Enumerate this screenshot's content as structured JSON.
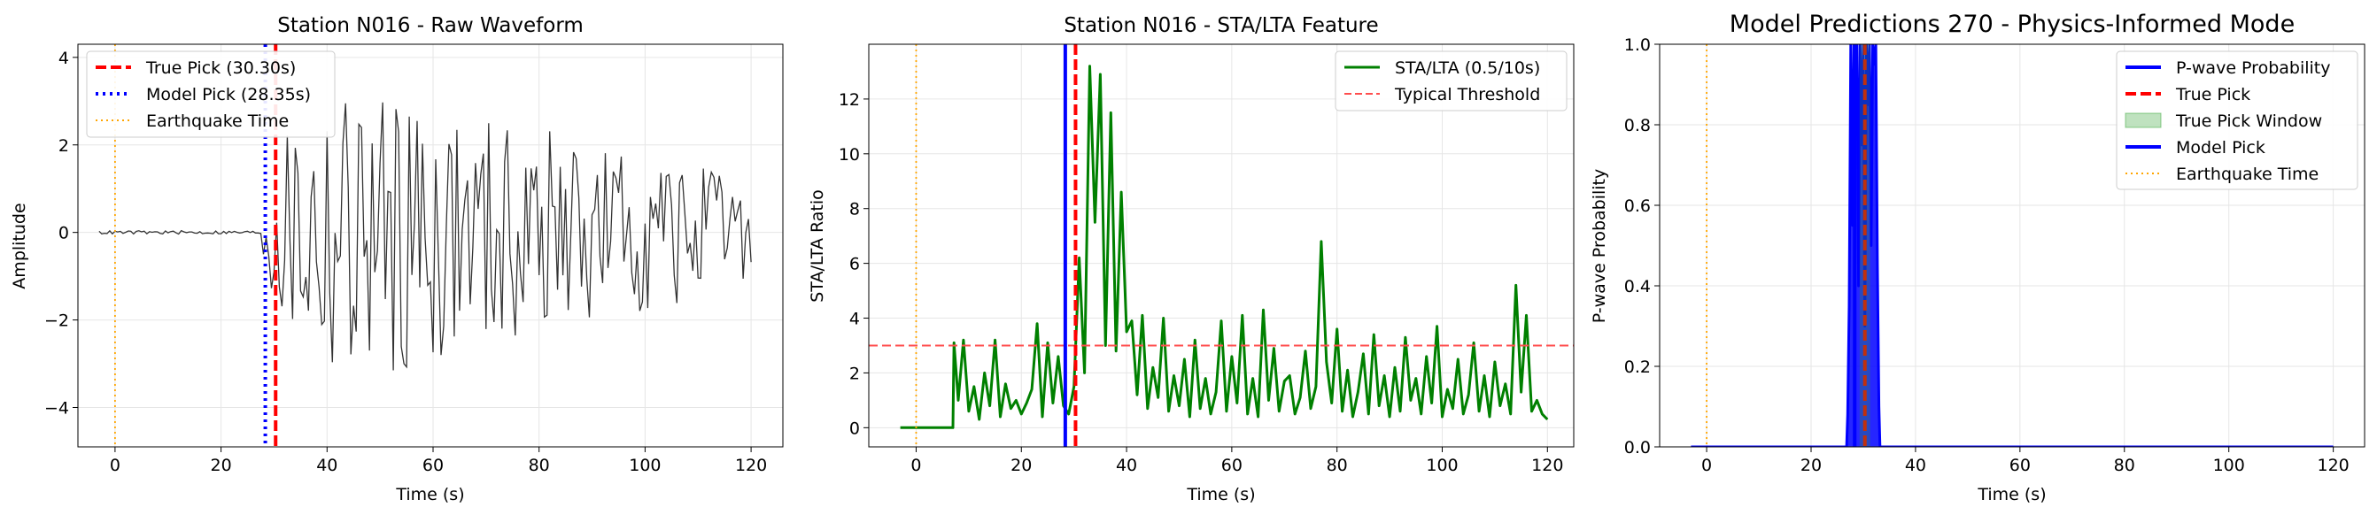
{
  "chart_data": [
    {
      "type": "line",
      "title": "Station N016 - Raw Waveform",
      "xlabel": "Time (s)",
      "ylabel": "Amplitude",
      "xlim": [
        -7,
        126
      ],
      "ylim": [
        -4.9,
        4.3
      ],
      "xticks": [
        0,
        20,
        40,
        60,
        80,
        100,
        120
      ],
      "yticks": [
        -4,
        -2,
        0,
        2,
        4
      ],
      "grid": true,
      "legend_position": "top-left",
      "series": [
        {
          "name": "",
          "color": "#000000",
          "style": "solid",
          "waveform": {
            "t_start": -3,
            "t_end": 120,
            "step": 0.5,
            "quiet_until": 28,
            "quiet_amplitude": 0.04,
            "peak_amplitude": 4.0,
            "decay_to": 1.2,
            "seed": 16
          }
        },
        {
          "name": "True Pick (30.30s)",
          "color": "#ff0000",
          "style": "dashed",
          "vline": 30.3
        },
        {
          "name": "Model Pick (28.35s)",
          "color": "#0000ff",
          "style": "dotted",
          "vline": 28.35
        },
        {
          "name": "Earthquake Time",
          "color": "#ffa500",
          "style": "dotted",
          "vline": 0
        }
      ]
    },
    {
      "type": "line",
      "title": "Station N016 - STA/LTA Feature",
      "xlabel": "Time (s)",
      "ylabel": "STA/LTA Ratio",
      "xlim": [
        -9,
        125
      ],
      "ylim": [
        -0.7,
        14
      ],
      "xticks": [
        0,
        20,
        40,
        60,
        80,
        100,
        120
      ],
      "yticks": [
        0,
        2,
        4,
        6,
        8,
        10,
        12
      ],
      "grid": true,
      "legend_position": "top-right",
      "series": [
        {
          "name": "STA/LTA (0.5/10s)",
          "color": "#008000",
          "style": "solid",
          "x": [
            -3,
            7,
            7.2,
            8,
            9,
            10,
            11,
            12,
            13,
            14,
            15,
            16,
            17,
            18,
            19,
            20,
            21,
            22,
            23,
            24,
            25,
            26,
            27,
            28,
            29,
            30,
            31,
            32,
            33,
            34,
            35,
            36,
            37,
            38,
            39,
            40,
            41,
            42,
            43,
            44,
            45,
            46,
            47,
            48,
            49,
            50,
            51,
            52,
            53,
            54,
            55,
            56,
            57,
            58,
            59,
            60,
            61,
            62,
            63,
            64,
            65,
            66,
            67,
            68,
            69,
            70,
            71,
            72,
            73,
            74,
            75,
            76,
            77,
            78,
            79,
            80,
            81,
            82,
            83,
            84,
            85,
            86,
            87,
            88,
            89,
            90,
            91,
            92,
            93,
            94,
            95,
            96,
            97,
            98,
            99,
            100,
            101,
            102,
            103,
            104,
            105,
            106,
            107,
            108,
            109,
            110,
            111,
            112,
            113,
            114,
            115,
            116,
            117,
            118,
            119,
            120
          ],
          "y": [
            0,
            0,
            3.1,
            1.0,
            3.2,
            0.6,
            1.5,
            0.3,
            2.0,
            0.8,
            3.2,
            0.4,
            1.6,
            0.7,
            1.0,
            0.5,
            0.9,
            1.4,
            3.8,
            0.4,
            3.1,
            0.9,
            2.6,
            0.8,
            0.5,
            1.5,
            6.2,
            2.0,
            13.2,
            7.5,
            12.9,
            3.0,
            11.5,
            2.8,
            8.6,
            3.5,
            3.9,
            1.2,
            4.1,
            0.7,
            2.2,
            1.1,
            4.0,
            0.6,
            1.9,
            0.8,
            2.5,
            0.4,
            3.2,
            0.7,
            1.8,
            0.5,
            1.3,
            3.9,
            0.6,
            2.6,
            0.9,
            4.1,
            0.5,
            1.8,
            0.4,
            4.3,
            1.0,
            2.9,
            0.6,
            1.7,
            1.9,
            0.5,
            1.1,
            2.8,
            0.7,
            1.5,
            6.8,
            2.4,
            0.9,
            3.6,
            0.6,
            2.1,
            0.4,
            1.3,
            2.7,
            0.5,
            3.4,
            0.8,
            1.9,
            0.4,
            2.2,
            0.6,
            3.3,
            1.0,
            1.8,
            0.5,
            2.6,
            0.9,
            3.7,
            0.4,
            1.4,
            0.7,
            2.5,
            0.5,
            1.2,
            3.1,
            0.6,
            1.9,
            0.4,
            2.4,
            0.8,
            1.6,
            0.5,
            5.2,
            1.3,
            4.1,
            0.6,
            1.0,
            0.5,
            0.3
          ]
        },
        {
          "name": "Typical Threshold",
          "color": "#ff4d4d",
          "style": "dashed",
          "hline": 3
        },
        {
          "name": "",
          "color": "#ffa500",
          "style": "dotted",
          "vline": 0
        },
        {
          "name": "",
          "color": "#0000ff",
          "style": "solid",
          "vline": 28.35
        },
        {
          "name": "",
          "color": "#ff0000",
          "style": "dashed",
          "vline": 30.3
        }
      ]
    },
    {
      "type": "area",
      "title": "Model Predictions 270 - Physics-Informed Mode",
      "xlabel": "Time (s)",
      "ylabel": "P-wave Probability",
      "xlim": [
        -9,
        126
      ],
      "ylim": [
        0,
        1
      ],
      "xticks": [
        0,
        20,
        40,
        60,
        80,
        100,
        120
      ],
      "yticks": [
        0.0,
        0.2,
        0.4,
        0.6,
        0.8,
        1.0
      ],
      "grid": true,
      "legend_position": "top-right",
      "series": [
        {
          "name": "P-wave Probability",
          "color": "#0000ff",
          "style": "solid",
          "x": [
            -3,
            26.8,
            27.0,
            27.3,
            27.6,
            27.9,
            28.2,
            28.5,
            28.8,
            29.1,
            29.4,
            29.7,
            30.0,
            30.3,
            30.6,
            30.9,
            31.2,
            31.5,
            31.8,
            32.1,
            32.4,
            32.7,
            33.0,
            33.2,
            120
          ],
          "y": [
            0,
            0,
            0.08,
            0.35,
            1.0,
            0.55,
            1.0,
            0.9,
            1.0,
            0.4,
            1.0,
            0.75,
            1.0,
            0.3,
            1.0,
            0.85,
            1.0,
            0.5,
            1.0,
            0.95,
            1.0,
            0.45,
            0.1,
            0,
            0
          ]
        },
        {
          "name": "True Pick",
          "color": "#ff0000",
          "style": "dashed",
          "vline": 30.3
        },
        {
          "name": "True Pick Window",
          "color": "#2ca02c",
          "style": "fill",
          "span": [
            29.3,
            31.3
          ]
        },
        {
          "name": "Model Pick",
          "color": "#0000ff",
          "style": "solid",
          "vline": 28.35
        },
        {
          "name": "Earthquake Time",
          "color": "#ffa500",
          "style": "dotted",
          "vline": 0
        }
      ]
    }
  ]
}
